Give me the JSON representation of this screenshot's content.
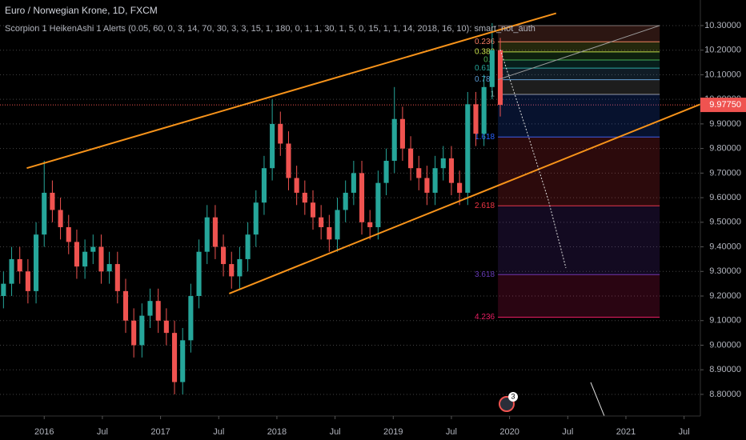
{
  "chart_data": {
    "type": "candlestick",
    "title": "Euro / Norwegian Krone, 1D, FXCM",
    "indicator": "Scorpion 1 HeikenAshi 1 Alerts (0.05, 60, 0, 3, 14, 70, 30, 3, 3, 15, 1, 180, 0, 1, 1, 30, 1, 5, 0, 15, 1, 1, 14, 2018, 16, 10): smart_not_auth",
    "up_color": "#26a69a",
    "down_color": "#ef5350",
    "x": [
      2015.65,
      2015.72,
      2015.79,
      2015.86,
      2015.93,
      2016.0,
      2016.07,
      2016.14,
      2016.21,
      2016.28,
      2016.35,
      2016.42,
      2016.49,
      2016.56,
      2016.63,
      2016.7,
      2016.77,
      2016.84,
      2016.91,
      2016.98,
      2017.05,
      2017.12,
      2017.19,
      2017.26,
      2017.33,
      2017.4,
      2017.47,
      2017.54,
      2017.61,
      2017.68,
      2017.75,
      2017.82,
      2017.89,
      2017.96,
      2018.03,
      2018.1,
      2018.17,
      2018.24,
      2018.31,
      2018.38,
      2018.45,
      2018.52,
      2018.59,
      2018.66,
      2018.73,
      2018.8,
      2018.87,
      2018.94,
      2019.01,
      2019.08,
      2019.15,
      2019.22,
      2019.29,
      2019.36,
      2019.43,
      2019.5,
      2019.57,
      2019.64,
      2019.71,
      2019.78,
      2019.85,
      2019.92
    ],
    "open": [
      9.2,
      9.25,
      9.35,
      9.3,
      9.22,
      9.45,
      9.62,
      9.55,
      9.48,
      9.42,
      9.32,
      9.38,
      9.4,
      9.3,
      9.33,
      9.22,
      9.1,
      9.0,
      9.12,
      9.18,
      9.1,
      9.05,
      8.85,
      9.02,
      9.2,
      9.38,
      9.52,
      9.4,
      9.33,
      9.28,
      9.35,
      9.45,
      9.58,
      9.72,
      9.9,
      9.82,
      9.68,
      9.62,
      9.58,
      9.52,
      9.48,
      9.43,
      9.55,
      9.62,
      9.7,
      9.5,
      9.48,
      9.66,
      9.75,
      9.92,
      9.8,
      9.72,
      9.68,
      9.62,
      9.72,
      9.76,
      9.66,
      9.62,
      9.98,
      9.86,
      10.05,
      10.2
    ],
    "high": [
      9.3,
      9.4,
      9.4,
      9.35,
      9.5,
      9.75,
      9.67,
      9.6,
      9.53,
      9.47,
      9.43,
      9.45,
      9.45,
      9.38,
      9.38,
      9.27,
      9.15,
      9.17,
      9.23,
      9.23,
      9.15,
      9.1,
      9.07,
      9.25,
      9.43,
      9.57,
      9.57,
      9.45,
      9.38,
      9.4,
      9.5,
      9.63,
      9.77,
      10.0,
      9.95,
      9.87,
      9.73,
      9.67,
      9.63,
      9.57,
      9.53,
      9.6,
      9.67,
      9.75,
      9.75,
      9.55,
      9.71,
      9.8,
      10.05,
      9.97,
      9.85,
      9.77,
      9.73,
      9.77,
      9.81,
      9.81,
      9.71,
      10.03,
      10.03,
      10.1,
      10.31,
      10.25
    ],
    "low": [
      9.15,
      9.2,
      9.25,
      9.17,
      9.17,
      9.4,
      9.5,
      9.43,
      9.37,
      9.27,
      9.27,
      9.33,
      9.25,
      9.25,
      9.17,
      9.05,
      8.95,
      8.95,
      9.07,
      9.05,
      9.0,
      8.8,
      8.8,
      8.97,
      9.15,
      9.33,
      9.35,
      9.28,
      9.23,
      9.23,
      9.3,
      9.4,
      9.53,
      9.67,
      9.77,
      9.63,
      9.57,
      9.53,
      9.47,
      9.43,
      9.38,
      9.38,
      9.5,
      9.57,
      9.45,
      9.43,
      9.43,
      9.61,
      9.7,
      9.75,
      9.67,
      9.63,
      9.57,
      9.57,
      9.67,
      9.61,
      9.57,
      9.57,
      9.81,
      9.81,
      10.0,
      9.93
    ],
    "close": [
      9.25,
      9.35,
      9.3,
      9.22,
      9.45,
      9.62,
      9.55,
      9.48,
      9.42,
      9.32,
      9.38,
      9.4,
      9.3,
      9.33,
      9.22,
      9.1,
      9.0,
      9.12,
      9.18,
      9.1,
      9.05,
      8.85,
      9.02,
      9.2,
      9.38,
      9.52,
      9.4,
      9.33,
      9.28,
      9.35,
      9.45,
      9.58,
      9.72,
      9.9,
      9.82,
      9.68,
      9.62,
      9.58,
      9.52,
      9.48,
      9.43,
      9.55,
      9.62,
      9.7,
      9.5,
      9.48,
      9.66,
      9.75,
      9.92,
      9.8,
      9.72,
      9.68,
      9.62,
      9.72,
      9.76,
      9.66,
      9.62,
      9.98,
      9.86,
      10.05,
      10.2,
      9.9775
    ],
    "xlim": [
      2015.62,
      2021.64
    ],
    "xticks": [
      2016,
      {
        "value": 2016.5,
        "label": "Jul"
      },
      2017,
      {
        "value": 2017.5,
        "label": "Jul"
      },
      2018,
      {
        "value": 2018.5,
        "label": "Jul"
      },
      2019,
      {
        "value": 2019.5,
        "label": "Jul"
      },
      2020,
      {
        "value": 2020.5,
        "label": "Jul"
      },
      2021,
      {
        "value": 2021.5,
        "label": "Jul"
      }
    ],
    "ylim": [
      8.712,
      10.404
    ],
    "yticks": [
      {
        "value": 8.8,
        "label": "8.80000"
      },
      {
        "value": 8.9,
        "label": "8.90000"
      },
      {
        "value": 9.0,
        "label": "9.00000"
      },
      {
        "value": 9.1,
        "label": "9.10000"
      },
      {
        "value": 9.2,
        "label": "9.20000"
      },
      {
        "value": 9.3,
        "label": "9.30000"
      },
      {
        "value": 9.4,
        "label": "9.40000"
      },
      {
        "value": 9.5,
        "label": "9.50000"
      },
      {
        "value": 9.6,
        "label": "9.60000"
      },
      {
        "value": 9.7,
        "label": "9.70000"
      },
      {
        "value": 9.8,
        "label": "9.80000"
      },
      {
        "value": 9.9,
        "label": "9.90000"
      },
      {
        "value": 10.0,
        "label": "10.00000"
      },
      {
        "value": 10.1,
        "label": "10.10000"
      },
      {
        "value": 10.2,
        "label": "10.20000"
      },
      {
        "value": 10.3,
        "label": "10.30000"
      }
    ],
    "grid": true,
    "price_line": {
      "value": 9.9775,
      "label": "9.97750",
      "color": "#ef5350"
    },
    "trendlines": [
      {
        "x": [
          2015.85,
          2020.4
        ],
        "y": [
          9.72,
          10.35
        ],
        "color": "#f7931a"
      },
      {
        "x": [
          2017.59,
          2021.64
        ],
        "y": [
          9.21,
          9.98
        ],
        "color": "#f7931a"
      },
      {
        "x": [
          2019.9,
          2021.29
        ],
        "y": [
          10.08,
          10.3
        ],
        "color": "#9e9e9e"
      }
    ],
    "fib": {
      "x": [
        2019.9,
        2021.29
      ],
      "high": 10.3,
      "low": 10.02,
      "levels": [
        0.236,
        0.382,
        0.5,
        0.618,
        0.786,
        1,
        1.618,
        2.618,
        3.618,
        4.236
      ],
      "colors": [
        "#f57c62",
        "#c8e04a",
        "#4caf50",
        "#26a69a",
        "#5b9bd5",
        "#9e9e9e",
        "#2962ff",
        "#f23645",
        "#673ab7",
        "#e91e63"
      ]
    },
    "event_badge": "3"
  }
}
